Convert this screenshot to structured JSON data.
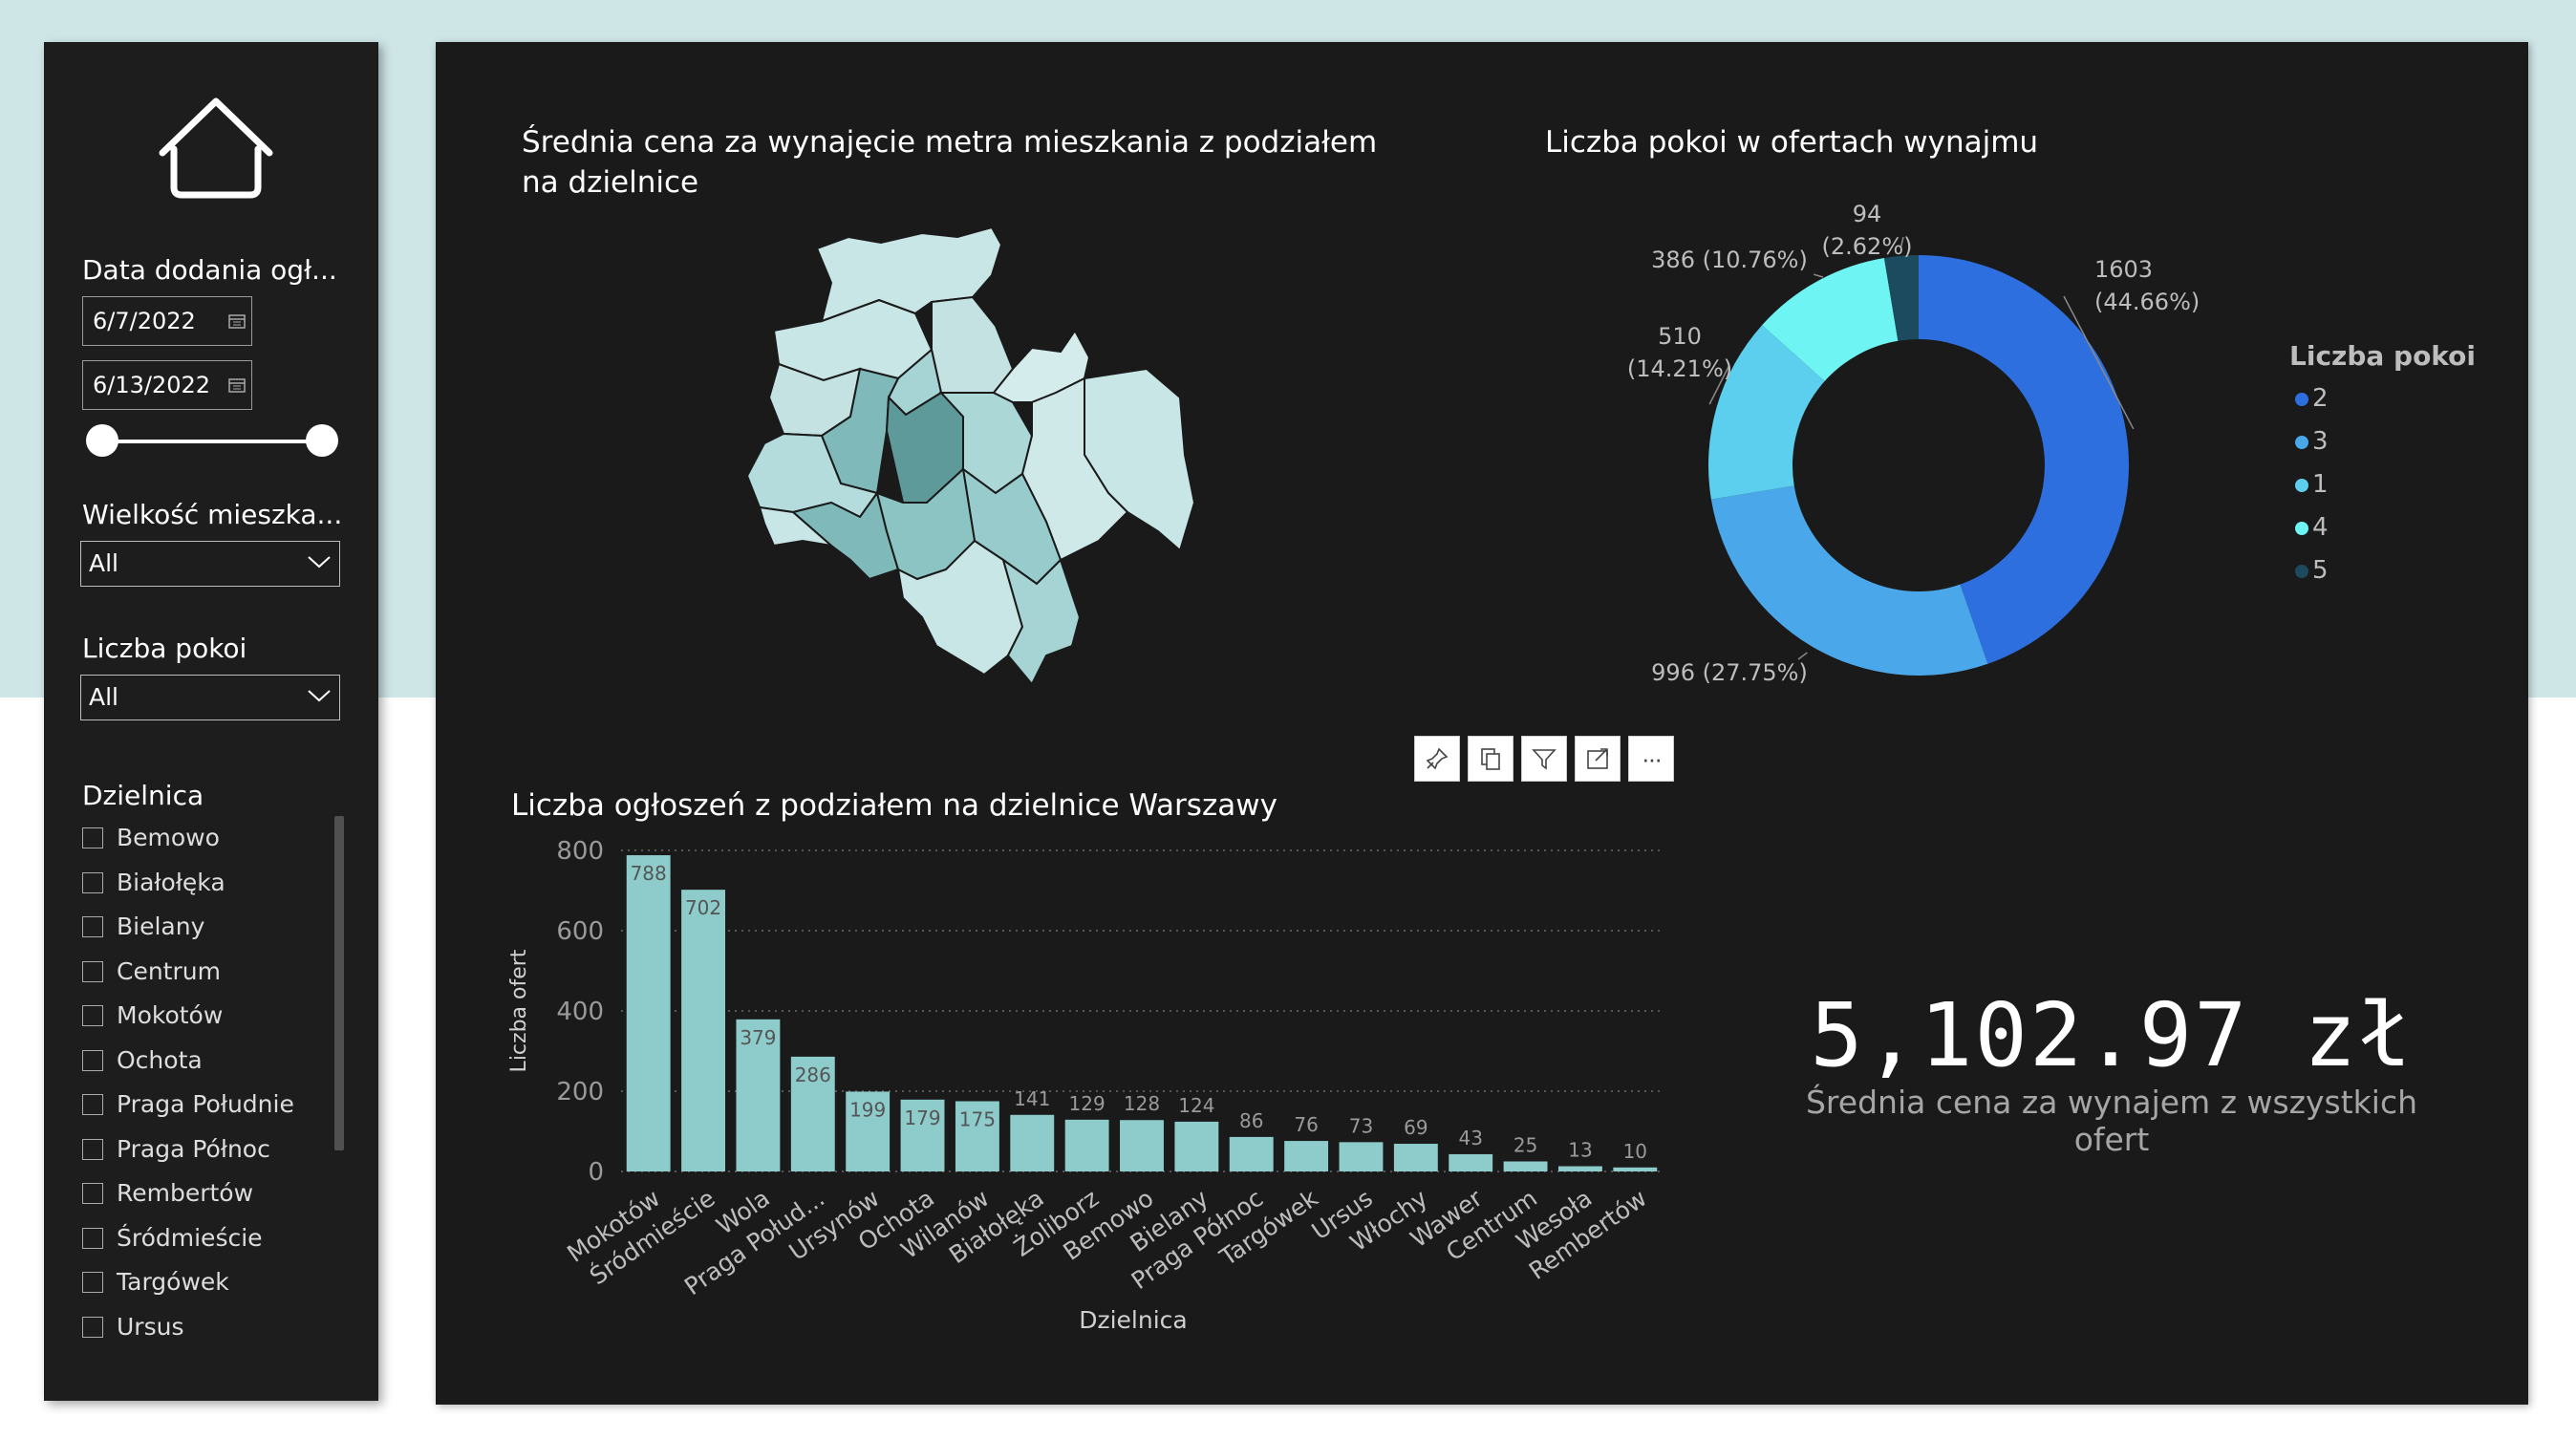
{
  "sidebar": {
    "date_slicer": {
      "title": "Data dodania ogł...",
      "start": "6/7/2022",
      "end": "6/13/2022",
      "range_start_fraction": 0,
      "range_end_fraction": 1
    },
    "size_slicer": {
      "title": "Wielkość mieszka...",
      "value": "All"
    },
    "rooms_slicer": {
      "title": "Liczba pokoi",
      "value": "All"
    },
    "district_slicer": {
      "title": "Dzielnica",
      "items": [
        "Bemowo",
        "Białołęka",
        "Bielany",
        "Centrum",
        "Mokotów",
        "Ochota",
        "Praga Południe",
        "Praga Północ",
        "Rembertów",
        "Śródmieście",
        "Targówek",
        "Ursus"
      ]
    }
  },
  "map_visual": {
    "title": "Średnia cena za wynajęcie metra mieszkania z podziałem na dzielnice"
  },
  "donut_visual": {
    "title": "Liczba pokoi w ofertach wynajmu",
    "legend_title": "Liczba pokoi",
    "slices": [
      {
        "label": "2",
        "value": 1603,
        "pct": "44.66%",
        "color": "#2e6fe0",
        "text": "1603",
        "text2": "(44.66%)"
      },
      {
        "label": "3",
        "value": 996,
        "pct": "27.75%",
        "color": "#4aa8ea",
        "text": "996 (27.75%)",
        "text2": ""
      },
      {
        "label": "1",
        "value": 510,
        "pct": "14.21%",
        "color": "#5ccfee",
        "text": "510",
        "text2": "(14.21%)"
      },
      {
        "label": "4",
        "value": 386,
        "pct": "10.76%",
        "color": "#6ff4f4",
        "text": "386 (10.76%)",
        "text2": ""
      },
      {
        "label": "5",
        "value": 94,
        "pct": "2.62%",
        "color": "#1c4a5e",
        "text": "94",
        "text2": "(2.62%)"
      }
    ]
  },
  "toolbar": {
    "icons": [
      "pin-icon",
      "copy-icon",
      "filter-icon",
      "focus-mode-icon",
      "more-options-icon"
    ],
    "more_label": "···"
  },
  "chart_data": {
    "type": "bar",
    "title": "Liczba ogłoszeń z podziałem na dzielnice Warszawy",
    "xlabel": "Dzielnica",
    "ylabel": "Liczba ofert",
    "ylim": [
      0,
      800
    ],
    "yticks": [
      "0",
      "200",
      "400",
      "600",
      "800"
    ],
    "grid": true,
    "bar_color": "#8ecbcb",
    "categories": [
      "Mokotów",
      "Śródmieście",
      "Wola",
      "Praga Połud...",
      "Ursynów",
      "Ochota",
      "Wilanów",
      "Białołęka",
      "Żoliborz",
      "Bemowo",
      "Bielany",
      "Praga Północ",
      "Targówek",
      "Ursus",
      "Włochy",
      "Wawer",
      "Centrum",
      "Wesoła",
      "Rembertów"
    ],
    "values": [
      788,
      702,
      379,
      286,
      199,
      179,
      175,
      141,
      129,
      128,
      124,
      86,
      76,
      73,
      69,
      43,
      25,
      13,
      10
    ]
  },
  "kpi": {
    "value": "5,102.97 zł",
    "label": "Średnia cena za wynajem z wszystkich ofert"
  }
}
